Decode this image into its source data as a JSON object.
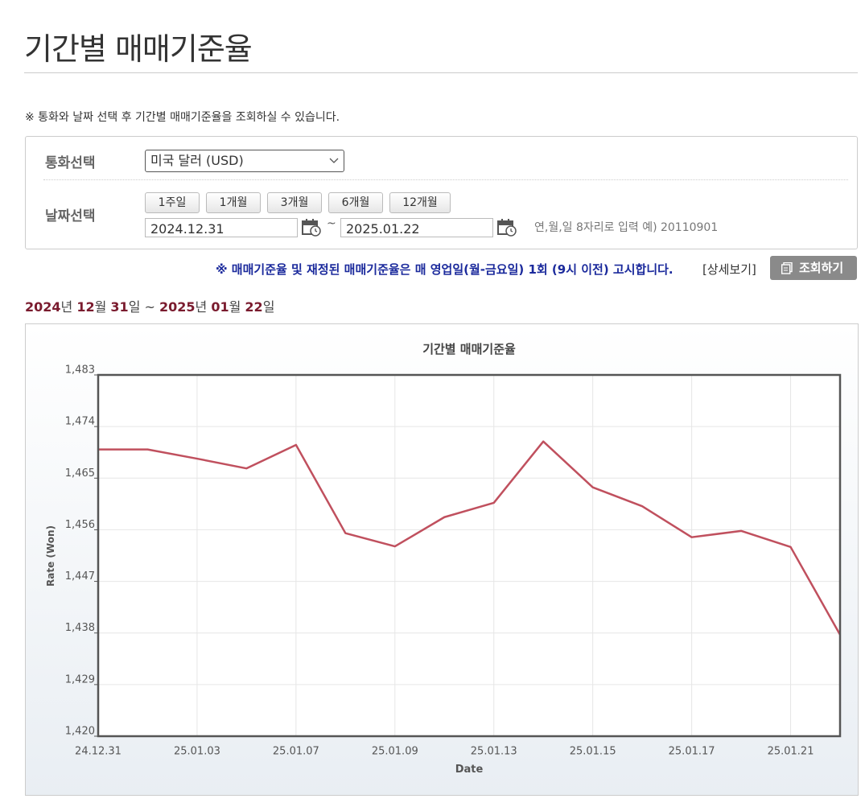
{
  "header": {
    "title": "기간별 매매기준율"
  },
  "note": "※ 통화와 날짜 선택 후 기간별 매매기준율을 조회하실 수 있습니다.",
  "form": {
    "currency_label": "통화선택",
    "currency_value": "미국 달러 (USD)",
    "date_label": "날짜선택",
    "period_buttons": [
      "1주일",
      "1개월",
      "3개월",
      "6개월",
      "12개월"
    ],
    "start_date": "2024.12.31",
    "date_separator": "~",
    "end_date": "2025.01.22",
    "hint": "연,월,일 8자리로 입력 예) 20110901"
  },
  "notice": "※ 매매기준율 및 재정된 매매기준율은 매 영업일(월-금요일) 1회 (9시 이전) 고시합니다.",
  "detail_link": "[상세보기]",
  "search_button": "조회하기",
  "range_parts": [
    "2024",
    "년 ",
    "12",
    "월 ",
    "31",
    "일 ~ ",
    "2025",
    "년 ",
    "01",
    "월 ",
    "22",
    "일"
  ],
  "chart_data": {
    "type": "line",
    "title": "기간별 매매기준율",
    "x_label": "Date",
    "y_label": "Rate (Won)",
    "categories": [
      "24.12.31",
      null,
      "25.01.03",
      null,
      "25.01.07",
      null,
      "25.01.09",
      null,
      "25.01.13",
      null,
      "25.01.15",
      null,
      "25.01.17",
      null,
      "25.01.21",
      null
    ],
    "values": [
      1470.0,
      1470.0,
      1468.4,
      1466.7,
      1470.8,
      1455.4,
      1453.1,
      1458.2,
      1460.7,
      1471.4,
      1463.4,
      1460.1,
      1454.7,
      1455.8,
      1453.0,
      1437.7
    ],
    "color": "#c0505e",
    "ylim": [
      1420,
      1483
    ],
    "yticks": [
      {
        "value": 1420,
        "label": "1,420"
      },
      {
        "value": 1429,
        "label": "1,429"
      },
      {
        "value": 1438,
        "label": "1,438"
      },
      {
        "value": 1447,
        "label": "1,447"
      },
      {
        "value": 1456,
        "label": "1,456"
      },
      {
        "value": 1465,
        "label": "1,465"
      },
      {
        "value": 1474,
        "label": "1,474"
      },
      {
        "value": 1483,
        "label": "1,483"
      }
    ],
    "grid": true
  }
}
